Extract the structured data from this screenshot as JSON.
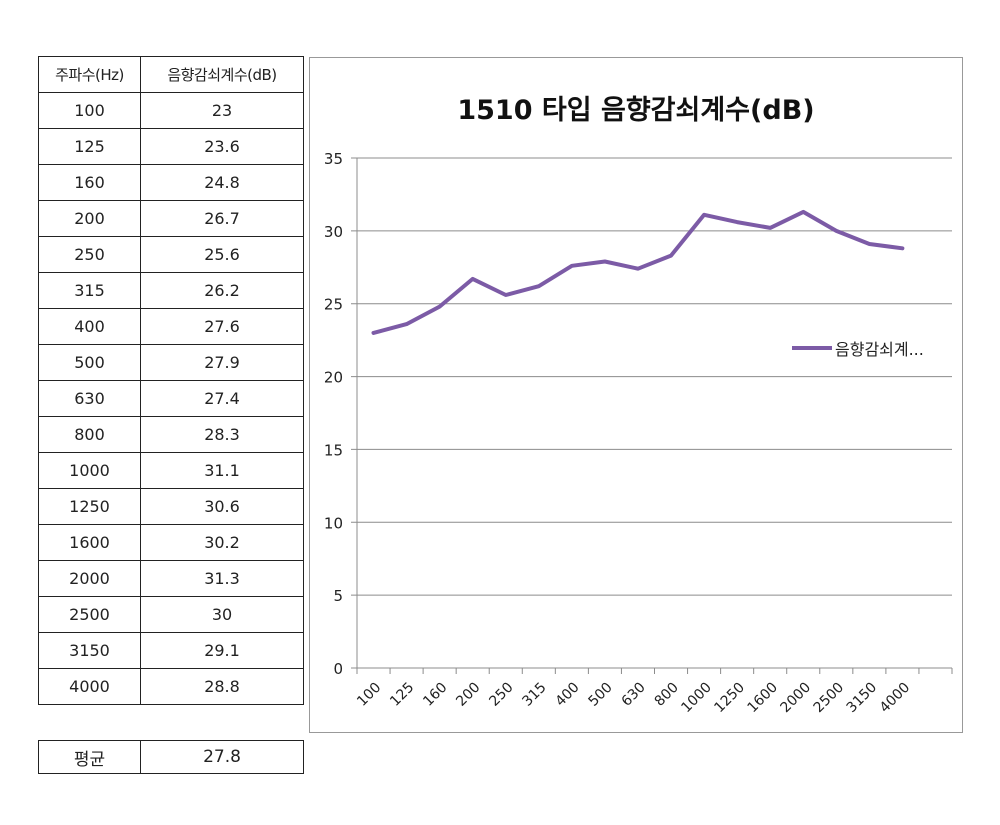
{
  "table": {
    "headers": [
      "주파수(Hz)",
      "음향감쇠계수(dB)"
    ],
    "rows": [
      [
        "100",
        "23"
      ],
      [
        "125",
        "23.6"
      ],
      [
        "160",
        "24.8"
      ],
      [
        "200",
        "26.7"
      ],
      [
        "250",
        "25.6"
      ],
      [
        "315",
        "26.2"
      ],
      [
        "400",
        "27.6"
      ],
      [
        "500",
        "27.9"
      ],
      [
        "630",
        "27.4"
      ],
      [
        "800",
        "28.3"
      ],
      [
        "1000",
        "31.1"
      ],
      [
        "1250",
        "30.6"
      ],
      [
        "1600",
        "30.2"
      ],
      [
        "2000",
        "31.3"
      ],
      [
        "2500",
        "30"
      ],
      [
        "3150",
        "29.1"
      ],
      [
        "4000",
        "28.8"
      ]
    ],
    "average_label": "평균",
    "average_value": "27.8"
  },
  "chart_data": {
    "type": "line",
    "title": "1510 타입 음향감쇠계수(dB)",
    "xlabel": "",
    "ylabel": "",
    "categories": [
      "100",
      "125",
      "160",
      "200",
      "250",
      "315",
      "400",
      "500",
      "630",
      "800",
      "1000",
      "1250",
      "1600",
      "2000",
      "2500",
      "3150",
      "4000"
    ],
    "series": [
      {
        "name": "음향감쇠계...",
        "color": "#7C5BA6",
        "values": [
          23,
          23.6,
          24.8,
          26.7,
          25.6,
          26.2,
          27.6,
          27.9,
          27.4,
          28.3,
          31.1,
          30.6,
          30.2,
          31.3,
          30,
          29.1,
          28.8
        ]
      }
    ],
    "ylim": [
      0,
      35
    ],
    "yticks": [
      "0",
      "5",
      "10",
      "15",
      "20",
      "25",
      "30",
      "35"
    ],
    "grid": true,
    "legend": "right",
    "extra_empty_slots": 1
  }
}
